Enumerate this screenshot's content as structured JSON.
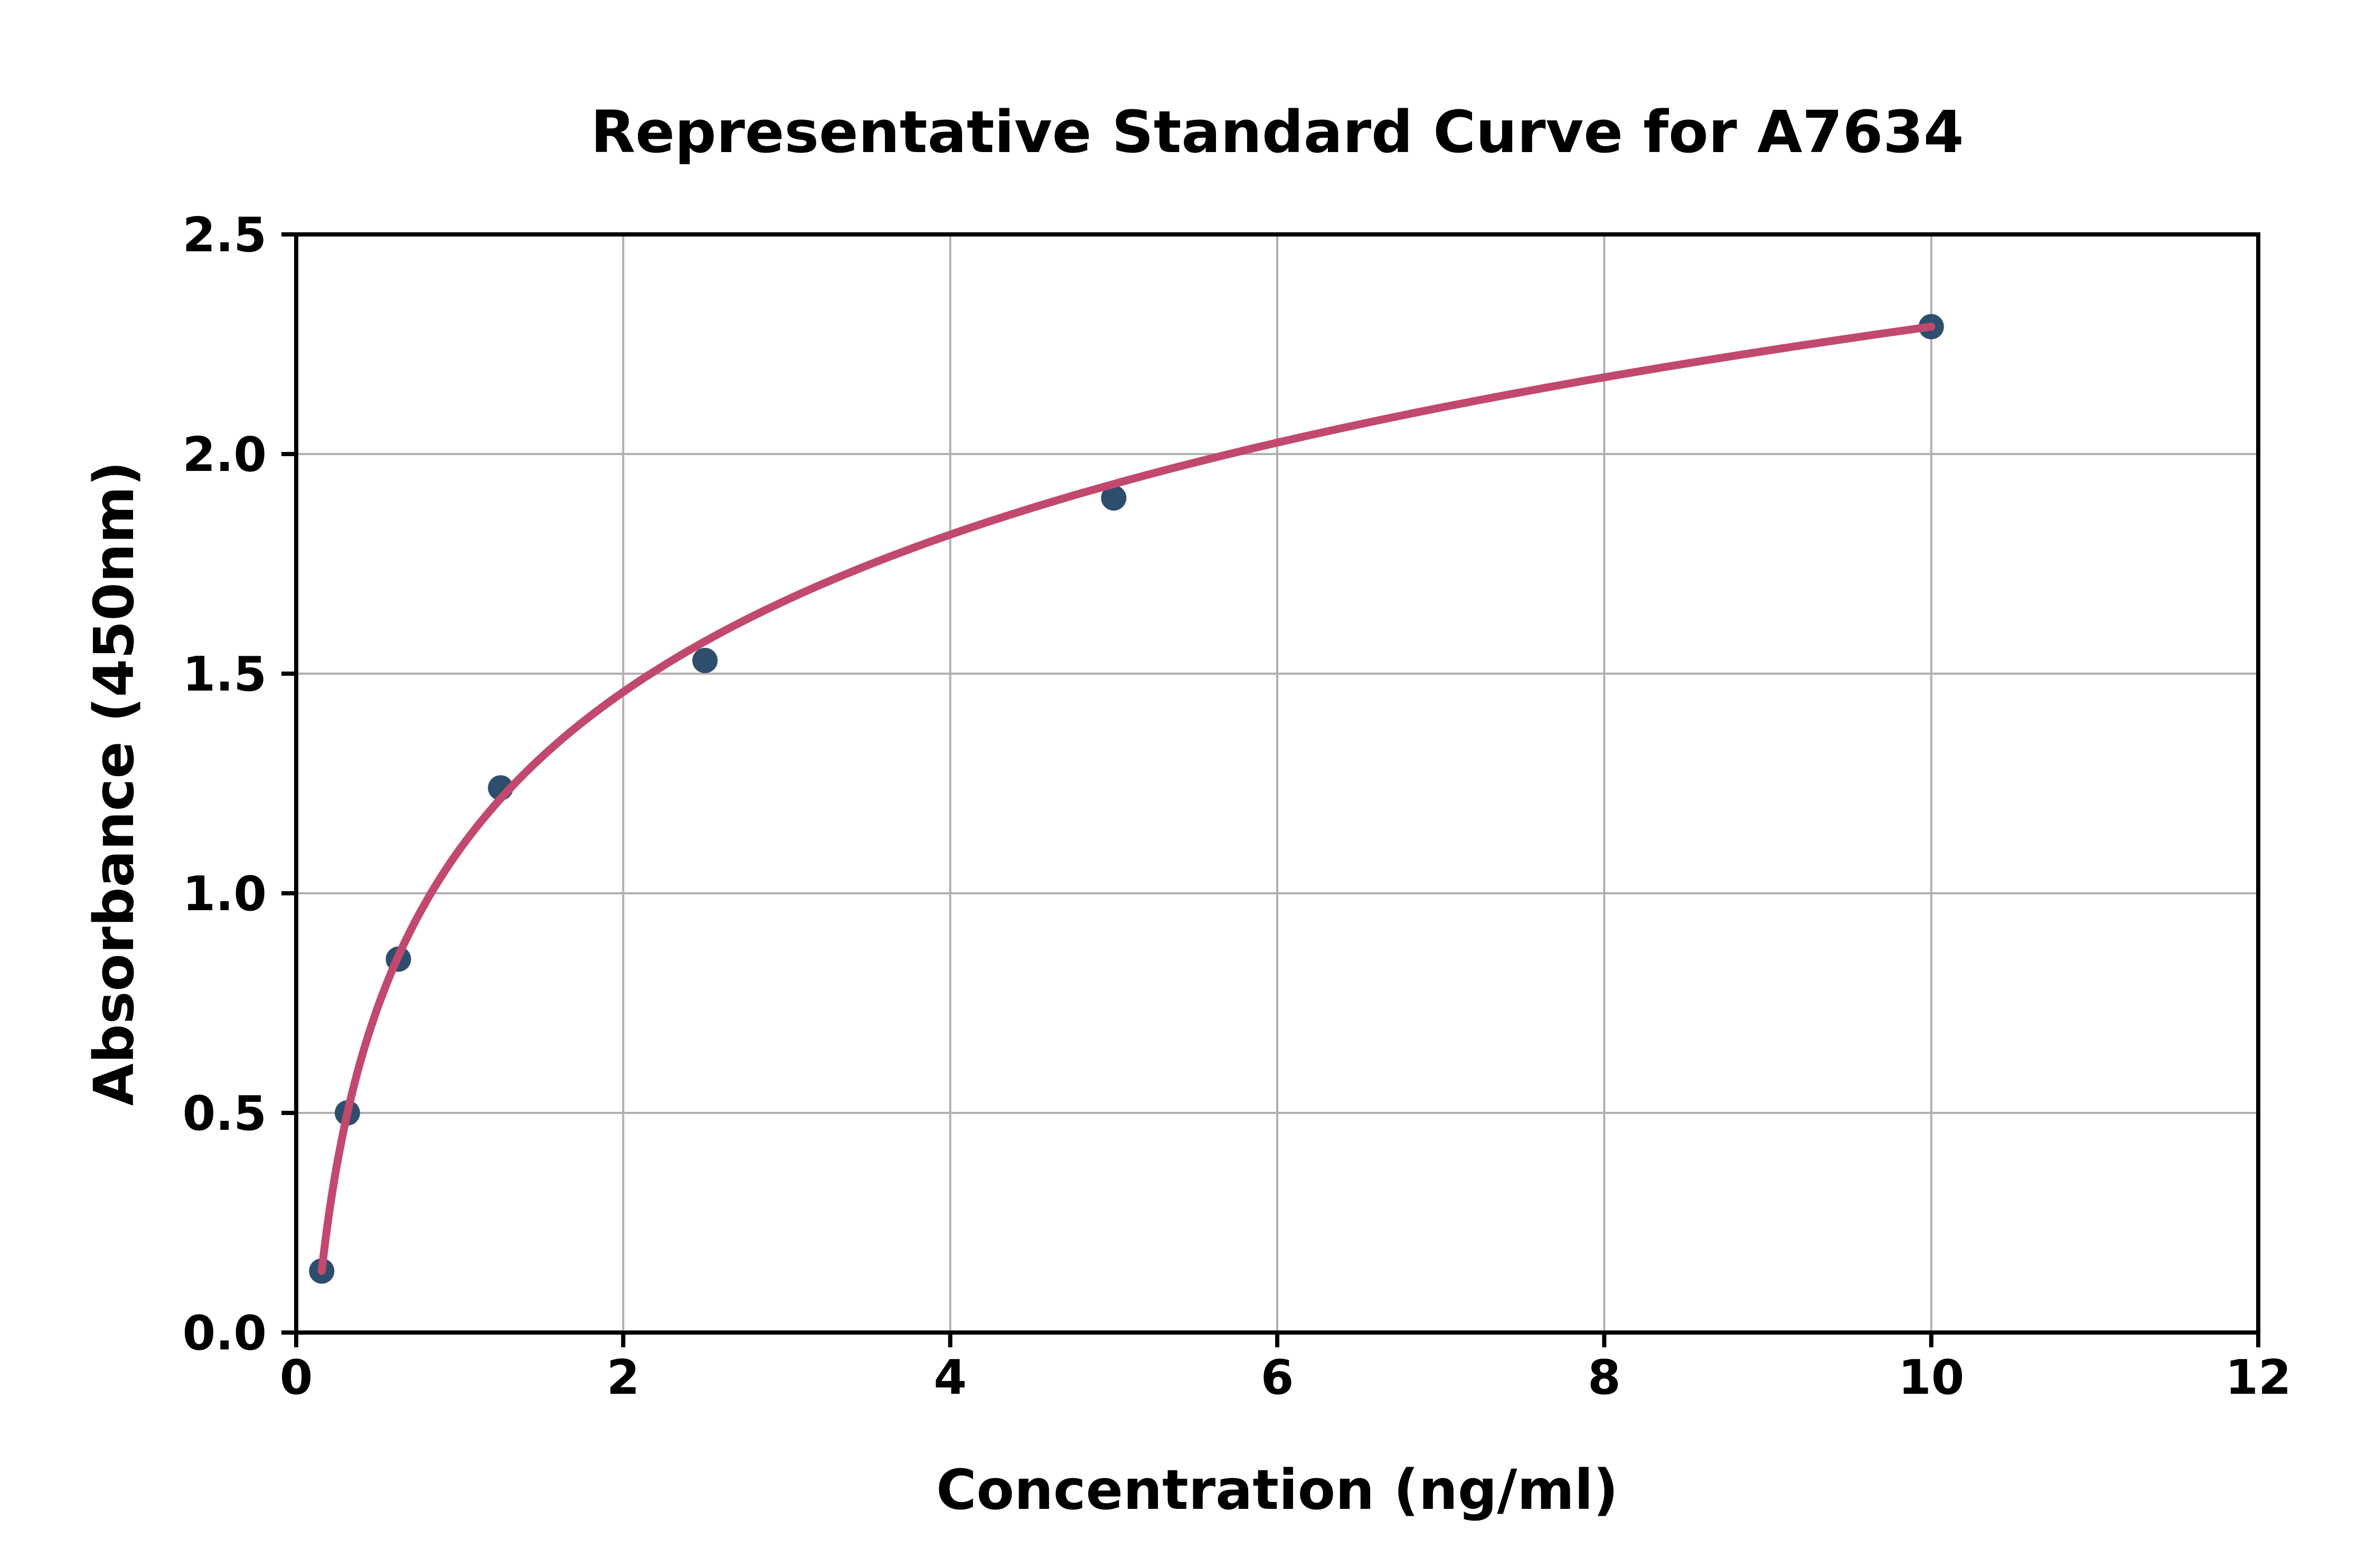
{
  "chart_data": {
    "type": "scatter",
    "title": "Representative Standard Curve for A7634",
    "xlabel": "Concentration (ng/ml)",
    "ylabel": "Absorbance (450nm)",
    "x": [
      0.156,
      0.313,
      0.625,
      1.25,
      2.5,
      5,
      10
    ],
    "y": [
      0.14,
      0.5,
      0.85,
      1.24,
      1.53,
      1.9,
      2.29
    ],
    "xlim": [
      0,
      12
    ],
    "ylim": [
      0,
      2.5
    ],
    "xticks": [
      0,
      2,
      4,
      6,
      8,
      10,
      12
    ],
    "yticks": [
      0,
      0.5,
      1.0,
      1.5,
      2.0,
      2.5
    ],
    "xtick_labels": [
      "0",
      "2",
      "4",
      "6",
      "8",
      "10",
      "12"
    ],
    "ytick_labels": [
      "0.0",
      "0.5",
      "1.0",
      "1.5",
      "2.0",
      "2.5"
    ],
    "grid": true,
    "legend": "none",
    "fit_curve": {
      "model": "logarithmic",
      "equation": "y = a*ln(x) + b, anchored through first and last data points",
      "x_start": 0.156,
      "x_end": 10
    },
    "colors": {
      "marker": "#2e4e6e",
      "curve": "#c2496e",
      "grid": "#b0b0b0",
      "axis": "#000000",
      "text": "#000000",
      "background": "#ffffff"
    }
  }
}
